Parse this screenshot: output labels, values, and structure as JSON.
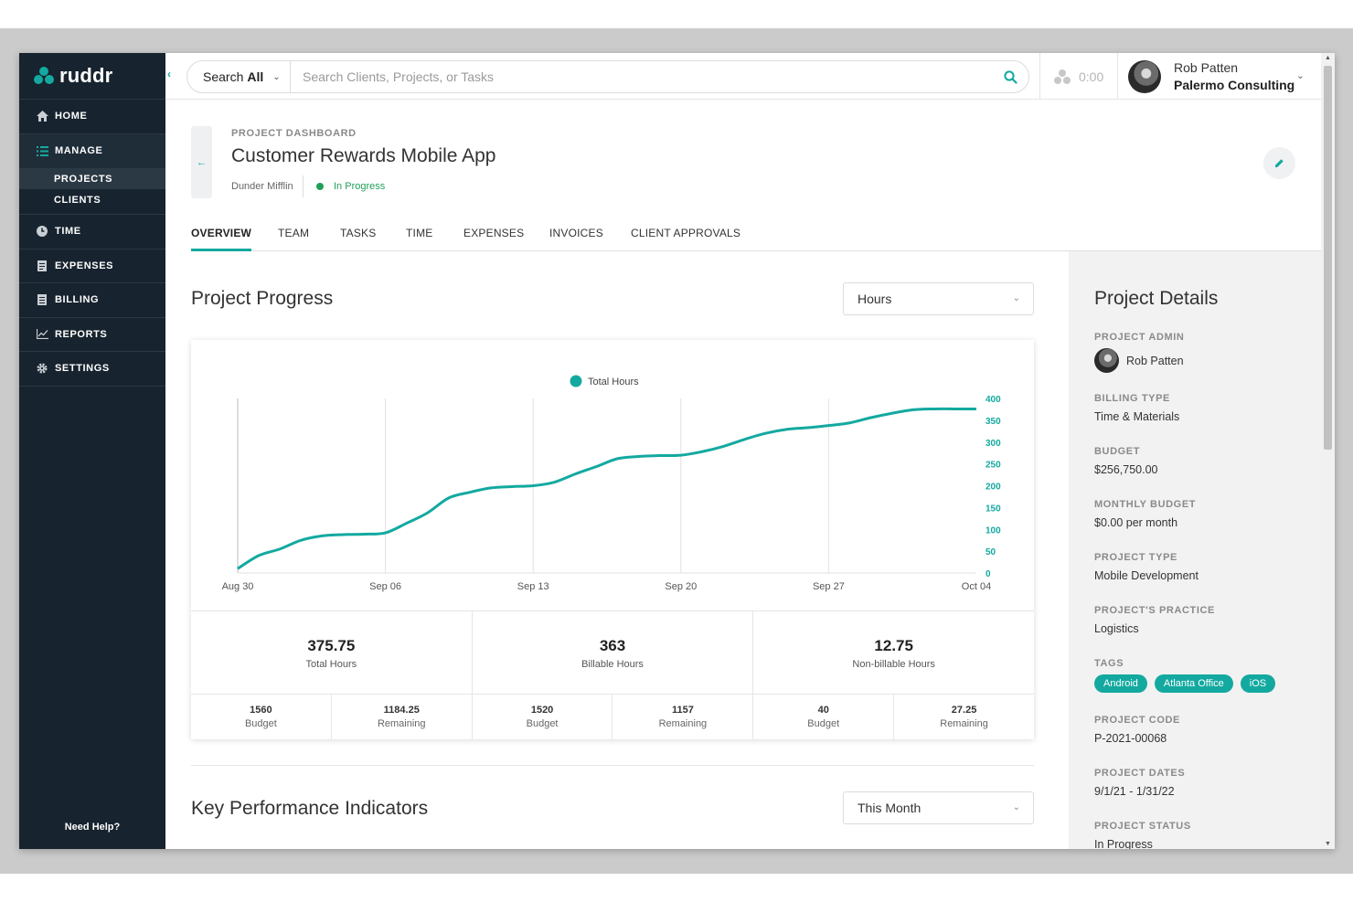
{
  "app": {
    "logo_text": "ruddr"
  },
  "sidebar": {
    "home": "HOME",
    "manage": "MANAGE",
    "projects": "PROJECTS",
    "clients": "CLIENTS",
    "time": "TIME",
    "expenses": "EXPENSES",
    "billing": "BILLING",
    "reports": "REPORTS",
    "settings": "SETTINGS",
    "need_help": "Need Help?"
  },
  "topbar": {
    "search_scope_prefix": "Search",
    "search_scope_bold": "All",
    "search_placeholder": "Search Clients, Projects, or Tasks",
    "timer": "0:00",
    "user_name": "Rob Patten",
    "user_org": "Palermo Consulting"
  },
  "header": {
    "breadcrumb": "PROJECT DASHBOARD",
    "title": "Customer Rewards Mobile App",
    "client": "Dunder Mifflin",
    "status": "In Progress"
  },
  "tabs": [
    "OVERVIEW",
    "TEAM",
    "TASKS",
    "TIME",
    "EXPENSES",
    "INVOICES",
    "CLIENT APPROVALS"
  ],
  "progress": {
    "title": "Project Progress",
    "select_value": "Hours",
    "stats": [
      {
        "value": "375.75",
        "label": "Total Hours"
      },
      {
        "value": "363",
        "label": "Billable Hours"
      },
      {
        "value": "12.75",
        "label": "Non-billable Hours"
      }
    ],
    "substats": [
      {
        "value": "1560",
        "label": "Budget"
      },
      {
        "value": "1184.25",
        "label": "Remaining"
      },
      {
        "value": "1520",
        "label": "Budget"
      },
      {
        "value": "1157",
        "label": "Remaining"
      },
      {
        "value": "40",
        "label": "Budget"
      },
      {
        "value": "27.25",
        "label": "Remaining"
      }
    ]
  },
  "kpi": {
    "title": "Key Performance Indicators",
    "select_value": "This Month"
  },
  "details": {
    "title": "Project Details",
    "admin_label": "PROJECT ADMIN",
    "admin_value": "Rob Patten",
    "billing_label": "BILLING TYPE",
    "billing_value": "Time & Materials",
    "budget_label": "BUDGET",
    "budget_value": "$256,750.00",
    "monthly_label": "MONTHLY BUDGET",
    "monthly_value": "$0.00 per month",
    "type_label": "PROJECT TYPE",
    "type_value": "Mobile Development",
    "practice_label": "PROJECT'S PRACTICE",
    "practice_value": "Logistics",
    "tags_label": "TAGS",
    "tags": [
      "Android",
      "Atlanta Office",
      "iOS"
    ],
    "code_label": "PROJECT CODE",
    "code_value": "P-2021-00068",
    "dates_label": "PROJECT DATES",
    "dates_value": "9/1/21 - 1/31/22",
    "status_label": "PROJECT STATUS",
    "status_value": "In Progress"
  },
  "colors": {
    "accent": "#13a9a0",
    "sidebar": "#17232e",
    "status_green": "#22a05a"
  },
  "chart_data": {
    "type": "line",
    "legend": "Total Hours",
    "x_ticks": [
      "Aug 30",
      "Sep 06",
      "Sep 13",
      "Sep 20",
      "Sep 27",
      "Oct 04"
    ],
    "y_ticks": [
      0,
      50,
      100,
      150,
      200,
      250,
      300,
      350,
      400
    ],
    "ylim": [
      0,
      400
    ],
    "y_axis_side": "right",
    "grid": "vertical",
    "series": [
      {
        "name": "Total Hours",
        "x": [
          "Aug 30",
          "Aug 31",
          "Sep 01",
          "Sep 02",
          "Sep 03",
          "Sep 04",
          "Sep 05",
          "Sep 06",
          "Sep 07",
          "Sep 08",
          "Sep 09",
          "Sep 10",
          "Sep 11",
          "Sep 12",
          "Sep 13",
          "Sep 14",
          "Sep 15",
          "Sep 16",
          "Sep 17",
          "Sep 18",
          "Sep 19",
          "Sep 20",
          "Sep 21",
          "Sep 22",
          "Sep 23",
          "Sep 24",
          "Sep 25",
          "Sep 26",
          "Sep 27",
          "Sep 28",
          "Sep 29",
          "Sep 30",
          "Oct 01",
          "Oct 02",
          "Oct 03",
          "Oct 04"
        ],
        "values": [
          10,
          40,
          55,
          75,
          85,
          88,
          89,
          92,
          114,
          138,
          172,
          185,
          195,
          198,
          200,
          208,
          227,
          244,
          262,
          267,
          269,
          270,
          278,
          290,
          306,
          320,
          329,
          333,
          338,
          344,
          356,
          366,
          374,
          376,
          376,
          376
        ]
      }
    ]
  }
}
